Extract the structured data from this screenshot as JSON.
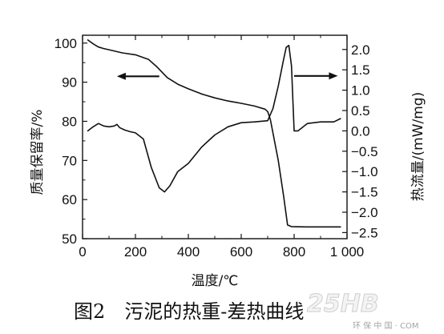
{
  "caption": "图2　污泥的热重-差热曲线",
  "watermark": {
    "logo_text": "25HB",
    "sub_text": "环 保 中 国 · COM"
  },
  "chart_data": {
    "type": "line",
    "xlabel": "温度/℃",
    "ylabel_left": "质量保留率/%",
    "ylabel_right": "热流量/(mW/mg)",
    "xlim": [
      0,
      1000
    ],
    "x_ticks": [
      0,
      200,
      400,
      600,
      800,
      1000
    ],
    "x_tick_labels": [
      "0",
      "200",
      "400",
      "600",
      "800",
      "1 000"
    ],
    "ylim_left": [
      50,
      102
    ],
    "y_left_ticks": [
      50,
      60,
      70,
      80,
      90,
      100
    ],
    "y_left_tick_labels": [
      "50",
      "60",
      "70",
      "80",
      "90",
      "100"
    ],
    "ylim_right": [
      -2.65,
      2.35
    ],
    "y_right_ticks": [
      2.0,
      1.5,
      1.0,
      0.5,
      0.0,
      -0.5,
      -1.0,
      -1.5,
      -2.0,
      -2.5
    ],
    "y_right_tick_labels": [
      "2.0",
      "1.5",
      "1.0",
      "0.5",
      "0.0",
      "−0.5",
      "−1.0",
      "−1.5",
      "−2.0",
      "−2.5"
    ],
    "grid": false,
    "legend": "none",
    "series": [
      {
        "axis": "left",
        "color": "#111111",
        "x": [
          20,
          40,
          60,
          80,
          100,
          150,
          200,
          250,
          280,
          320,
          360,
          400,
          450,
          500,
          550,
          600,
          650,
          690,
          700,
          710,
          740,
          760,
          775,
          790,
          850,
          900,
          950,
          975
        ],
        "y": [
          100.8,
          99.8,
          99.0,
          98.6,
          98.3,
          97.5,
          97.0,
          95.8,
          94.0,
          91.2,
          89.5,
          88.3,
          87.0,
          86.0,
          85.2,
          84.6,
          83.9,
          83.1,
          82.5,
          80.5,
          70.0,
          61.0,
          53.5,
          53.1,
          53.0,
          53.0,
          53.0,
          53.0
        ]
      },
      {
        "axis": "right",
        "color": "#111111",
        "x": [
          20,
          40,
          60,
          80,
          100,
          120,
          130,
          140,
          160,
          180,
          200,
          230,
          260,
          290,
          310,
          330,
          360,
          400,
          450,
          500,
          550,
          600,
          650,
          700,
          720,
          740,
          760,
          770,
          780,
          790,
          800,
          815,
          850,
          900,
          950,
          975
        ],
        "y": [
          0.0,
          0.1,
          0.18,
          0.12,
          0.1,
          0.12,
          0.16,
          0.08,
          0.02,
          -0.02,
          -0.05,
          -0.2,
          -0.9,
          -1.4,
          -1.5,
          -1.35,
          -1.0,
          -0.8,
          -0.4,
          -0.1,
          0.1,
          0.2,
          0.22,
          0.25,
          0.55,
          1.1,
          1.75,
          2.05,
          2.1,
          1.6,
          0.0,
          0.0,
          0.18,
          0.22,
          0.22,
          0.3
        ]
      }
    ],
    "annotations": [
      {
        "type": "arrow",
        "direction": "left",
        "points_to_axis": "left",
        "x_from": 290,
        "x_to": 130,
        "y_left": 91.5
      },
      {
        "type": "arrow",
        "direction": "right",
        "points_to_axis": "right",
        "x_from": 800,
        "x_to": 965,
        "y_right": 1.35
      }
    ]
  }
}
